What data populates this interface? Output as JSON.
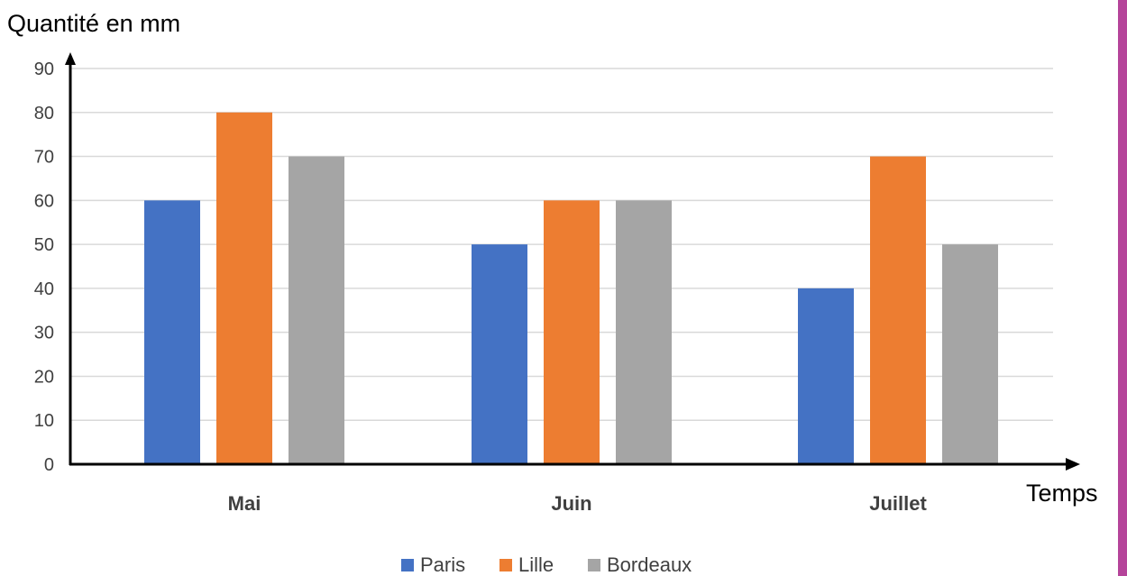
{
  "chart_data": {
    "type": "bar",
    "categories": [
      "Mai",
      "Juin",
      "Juillet"
    ],
    "series": [
      {
        "name": "Paris",
        "values": [
          60,
          50,
          40
        ],
        "color": "#4472C4"
      },
      {
        "name": "Lille",
        "values": [
          80,
          60,
          70
        ],
        "color": "#ED7D31"
      },
      {
        "name": "Bordeaux",
        "values": [
          70,
          60,
          50
        ],
        "color": "#A5A5A5"
      }
    ],
    "ylabel": "Quantité en mm",
    "xlabel": "Temps",
    "ylim": [
      0,
      90
    ],
    "y_ticks": [
      0,
      10,
      20,
      30,
      40,
      50,
      60,
      70,
      80,
      90
    ],
    "grid": true,
    "legend_position": "bottom-center"
  },
  "colors": {
    "gridline": "#D9D9D9",
    "axis": "#000000",
    "tick_text": "#404040",
    "category_text": "#404040",
    "side_bar": "#B5449A"
  }
}
